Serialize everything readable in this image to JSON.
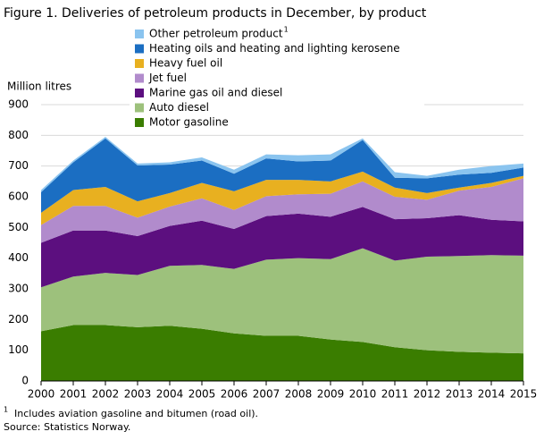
{
  "chart_data": {
    "type": "stacked_area",
    "title": "Figure 1. Deliveries of petroleum products in December, by product",
    "y_label": "Million litres",
    "x": [
      2000,
      2001,
      2002,
      2003,
      2004,
      2005,
      2006,
      2007,
      2008,
      2009,
      2010,
      2011,
      2012,
      2013,
      2014,
      2015
    ],
    "xlim": [
      2000,
      2015
    ],
    "xticks": [
      2000,
      2001,
      2002,
      2003,
      2004,
      2005,
      2006,
      2007,
      2008,
      2009,
      2010,
      2011,
      2012,
      2013,
      2014,
      2015
    ],
    "ylim": [
      0,
      900
    ],
    "yticks": [
      0,
      100,
      200,
      300,
      400,
      500,
      600,
      700,
      800,
      900
    ],
    "grid": true,
    "legend_position": "top",
    "series": [
      {
        "name": "Motor gasoline",
        "color": "#3a7d00",
        "values": [
          162,
          182,
          182,
          175,
          180,
          170,
          155,
          147,
          147,
          135,
          127,
          110,
          100,
          95,
          92,
          90
        ]
      },
      {
        "name": "Auto diesel",
        "color": "#9dc17c",
        "values": [
          143,
          158,
          170,
          170,
          195,
          208,
          210,
          248,
          253,
          262,
          305,
          282,
          305,
          312,
          318,
          318
        ]
      },
      {
        "name": "Marine gas oil and diesel",
        "color": "#5c0f7f",
        "values": [
          145,
          150,
          138,
          127,
          130,
          144,
          130,
          142,
          145,
          138,
          135,
          135,
          125,
          133,
          115,
          112
        ]
      },
      {
        "name": "Jet fuel",
        "color": "#b18bcc",
        "values": [
          58,
          80,
          80,
          60,
          63,
          73,
          62,
          65,
          63,
          75,
          83,
          73,
          60,
          80,
          107,
          140
        ]
      },
      {
        "name": "Heavy fuel oil",
        "color": "#e8b020",
        "values": [
          40,
          52,
          62,
          53,
          44,
          50,
          61,
          53,
          47,
          40,
          32,
          30,
          22,
          10,
          13,
          8
        ]
      },
      {
        "name": "Heating oils and heating and lighting kerosene",
        "color": "#1b6ec2",
        "values": [
          67,
          90,
          158,
          117,
          93,
          73,
          57,
          70,
          60,
          68,
          103,
          32,
          48,
          42,
          33,
          27
        ]
      },
      {
        "name": "Other petroleum product",
        "note_marker": "1",
        "color": "#8ac4ef",
        "values": [
          7,
          6,
          5,
          6,
          7,
          10,
          13,
          13,
          20,
          20,
          5,
          18,
          8,
          16,
          22,
          13
        ]
      }
    ],
    "footnote": {
      "marker": "1",
      "text": "Includes aviation gasoline and bitumen (road oil)."
    },
    "source": "Source: Statistics Norway."
  }
}
